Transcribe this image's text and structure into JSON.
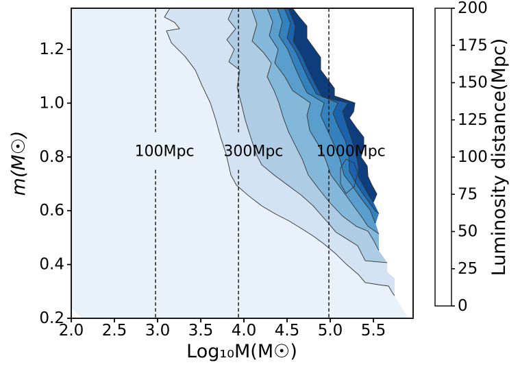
{
  "chart_data": {
    "type": "filled_contour",
    "title": "",
    "labels": {
      "x": "Log₁₀M(M☉)",
      "y": "m(M☉)",
      "colorbar": "Luminosity distance(Mpc)"
    },
    "x_range": [
      2.0,
      5.96
    ],
    "y_range": [
      0.2,
      1.353
    ],
    "x_ticks": {
      "values": [
        2.0,
        2.5,
        3.0,
        3.5,
        4.0,
        4.5,
        5.0,
        5.5
      ],
      "labels": [
        "2.0",
        "2.5",
        "3.0",
        "3.5",
        "4.0",
        "4.5",
        "5.0",
        "5.5"
      ]
    },
    "y_ticks": {
      "values": [
        0.2,
        0.4,
        0.6,
        0.8,
        1.0,
        1.2
      ],
      "labels": [
        "0.2",
        "0.4",
        "0.6",
        "0.8",
        "1.0",
        "1.2"
      ]
    },
    "colorbar": {
      "levels": [
        0,
        25,
        50,
        75,
        100,
        125,
        150,
        175,
        200
      ],
      "tick_labels": [
        "0",
        "25",
        "50",
        "75",
        "100",
        "125",
        "150",
        "175",
        "200"
      ],
      "band_colors": [
        "#e9f1fa",
        "#d3e3f3",
        "#aecde4",
        "#84b8da",
        "#5a9ecd",
        "#3381bd",
        "#1b63ad",
        "#0d3d7c"
      ]
    },
    "line_color": "#333333",
    "reference_line_color": "#1a1a1a",
    "reference_lines": [
      {
        "x": 2.976,
        "label": "100Mpc",
        "label_x": 3.08
      },
      {
        "x": 3.937,
        "label": "300Mpc",
        "label_x": 4.11
      },
      {
        "x": 4.984,
        "label": "1000Mpc",
        "label_x": 5.24
      }
    ],
    "reference_label_y": 0.82,
    "reference_gap_y": [
      0.752,
      0.892
    ],
    "data_boundary": [
      [
        4.563,
        1.353
      ],
      [
        4.643,
        1.32
      ],
      [
        4.73,
        1.287
      ],
      [
        4.73,
        1.241
      ],
      [
        4.81,
        1.205
      ],
      [
        4.889,
        1.17
      ],
      [
        4.889,
        1.124
      ],
      [
        4.968,
        1.09
      ],
      [
        5.048,
        1.055
      ],
      [
        5.048,
        1.027
      ],
      [
        5.286,
        1.001
      ],
      [
        5.27,
        0.968
      ],
      [
        5.222,
        0.945
      ],
      [
        5.302,
        0.909
      ],
      [
        5.389,
        0.873
      ],
      [
        5.389,
        0.833
      ],
      [
        5.357,
        0.8
      ],
      [
        5.429,
        0.766
      ],
      [
        5.437,
        0.728
      ],
      [
        5.484,
        0.695
      ],
      [
        5.54,
        0.662
      ],
      [
        5.5,
        0.631
      ],
      [
        5.563,
        0.59
      ],
      [
        5.524,
        0.552
      ],
      [
        5.563,
        0.514
      ],
      [
        5.563,
        0.452
      ],
      [
        5.659,
        0.407
      ],
      [
        5.659,
        0.373
      ],
      [
        5.746,
        0.348
      ],
      [
        5.746,
        0.284
      ],
      [
        5.905,
        0.2
      ]
    ],
    "boundary_stroke_end_index": 21,
    "lower_left_cutout": [
      [
        2.119,
        0.2
      ],
      [
        2.0,
        0.238
      ]
    ],
    "contour_lines": [
      {
        "level": 25,
        "junction": 29,
        "points": [
          [
            3.143,
            1.353
          ],
          [
            3.079,
            1.32
          ],
          [
            3.198,
            1.3
          ],
          [
            3.254,
            1.277
          ],
          [
            3.103,
            1.269
          ],
          [
            3.159,
            1.225
          ],
          [
            3.317,
            1.174
          ],
          [
            3.437,
            1.123
          ],
          [
            3.516,
            1.065
          ],
          [
            3.611,
            1.001
          ],
          [
            3.675,
            0.937
          ],
          [
            3.73,
            0.873
          ],
          [
            3.794,
            0.81
          ],
          [
            3.849,
            0.733
          ],
          [
            3.913,
            0.695
          ],
          [
            4.048,
            0.657
          ],
          [
            4.206,
            0.618
          ],
          [
            4.365,
            0.588
          ],
          [
            4.524,
            0.562
          ],
          [
            4.69,
            0.529
          ],
          [
            4.81,
            0.504
          ],
          [
            4.921,
            0.478
          ],
          [
            5.063,
            0.44
          ],
          [
            5.183,
            0.402
          ],
          [
            5.325,
            0.363
          ],
          [
            5.405,
            0.333
          ],
          [
            5.556,
            0.325
          ],
          [
            5.675,
            0.32
          ],
          [
            5.722,
            0.294
          ],
          [
            5.746,
            0.284
          ]
        ]
      },
      {
        "level": 50,
        "junction": 26,
        "points": [
          [
            3.873,
            1.353
          ],
          [
            3.817,
            1.312
          ],
          [
            3.905,
            1.277
          ],
          [
            3.802,
            1.236
          ],
          [
            3.889,
            1.2
          ],
          [
            3.825,
            1.154
          ],
          [
            3.952,
            1.123
          ],
          [
            3.921,
            1.057
          ],
          [
            3.968,
            1.001
          ],
          [
            4.016,
            0.937
          ],
          [
            4.079,
            0.873
          ],
          [
            4.143,
            0.81
          ],
          [
            4.206,
            0.771
          ],
          [
            4.349,
            0.733
          ],
          [
            4.508,
            0.695
          ],
          [
            4.667,
            0.657
          ],
          [
            4.802,
            0.618
          ],
          [
            4.905,
            0.58
          ],
          [
            4.984,
            0.552
          ],
          [
            5.063,
            0.521
          ],
          [
            5.317,
            0.47
          ],
          [
            5.405,
            0.414
          ],
          [
            5.659,
            0.407
          ]
        ]
      },
      {
        "level": 75,
        "junction": 25,
        "points": [
          [
            4.087,
            1.353
          ],
          [
            4.151,
            1.294
          ],
          [
            4.095,
            1.231
          ],
          [
            4.23,
            1.187
          ],
          [
            4.317,
            1.149
          ],
          [
            4.27,
            1.098
          ],
          [
            4.349,
            1.047
          ],
          [
            4.405,
            1.001
          ],
          [
            4.452,
            0.95
          ],
          [
            4.516,
            0.894
          ],
          [
            4.595,
            0.843
          ],
          [
            4.675,
            0.792
          ],
          [
            4.746,
            0.733
          ],
          [
            4.865,
            0.682
          ],
          [
            4.992,
            0.631
          ],
          [
            5.143,
            0.58
          ],
          [
            5.302,
            0.542
          ],
          [
            5.437,
            0.524
          ],
          [
            5.5,
            0.491
          ],
          [
            5.563,
            0.452
          ]
        ]
      },
      {
        "level": 100,
        "junction": 24,
        "points": [
          [
            4.27,
            1.353
          ],
          [
            4.333,
            1.302
          ],
          [
            4.294,
            1.251
          ],
          [
            4.397,
            1.2
          ],
          [
            4.357,
            1.149
          ],
          [
            4.476,
            1.098
          ],
          [
            4.563,
            1.047
          ],
          [
            4.77,
            1.001
          ],
          [
            4.73,
            0.955
          ],
          [
            4.762,
            0.899
          ],
          [
            4.857,
            0.848
          ],
          [
            4.944,
            0.792
          ],
          [
            5.008,
            0.733
          ],
          [
            5.095,
            0.695
          ],
          [
            5.183,
            0.657
          ],
          [
            5.27,
            0.618
          ],
          [
            5.357,
            0.58
          ],
          [
            5.437,
            0.542
          ],
          [
            5.563,
            0.514
          ]
        ]
      },
      {
        "level": 125,
        "junction": 23,
        "points": [
          [
            4.389,
            1.353
          ],
          [
            4.444,
            1.302
          ],
          [
            4.405,
            1.251
          ],
          [
            4.508,
            1.2
          ],
          [
            4.571,
            1.149
          ],
          [
            4.651,
            1.09
          ],
          [
            4.73,
            1.039
          ],
          [
            4.929,
            1.001
          ],
          [
            4.889,
            0.955
          ],
          [
            4.968,
            0.899
          ],
          [
            5.048,
            0.843
          ],
          [
            5.111,
            0.792
          ],
          [
            5.159,
            0.733
          ],
          [
            5.238,
            0.7
          ],
          [
            5.317,
            0.664
          ],
          [
            5.397,
            0.629
          ],
          [
            5.46,
            0.603
          ],
          [
            5.524,
            0.552
          ]
        ]
      },
      {
        "level": 150,
        "junction": 22,
        "points": [
          [
            4.468,
            1.353
          ],
          [
            4.54,
            1.297
          ],
          [
            4.5,
            1.243
          ],
          [
            4.603,
            1.19
          ],
          [
            4.675,
            1.139
          ],
          [
            4.754,
            1.085
          ],
          [
            4.841,
            1.034
          ],
          [
            5.087,
            1.001
          ],
          [
            5.032,
            0.963
          ],
          [
            5.095,
            0.912
          ],
          [
            5.175,
            0.861
          ],
          [
            5.214,
            0.807
          ],
          [
            5.222,
            0.746
          ],
          [
            5.286,
            0.708
          ],
          [
            5.365,
            0.669
          ],
          [
            5.444,
            0.634
          ],
          [
            5.52,
            0.6
          ],
          [
            5.563,
            0.59
          ]
        ]
      },
      {
        "level": 175,
        "junction": 21,
        "points": [
          [
            4.516,
            1.353
          ],
          [
            4.595,
            1.287
          ],
          [
            4.571,
            1.231
          ],
          [
            4.675,
            1.174
          ],
          [
            4.746,
            1.123
          ],
          [
            4.825,
            1.072
          ],
          [
            4.905,
            1.024
          ],
          [
            5.206,
            1.001
          ],
          [
            5.143,
            0.97
          ],
          [
            5.19,
            0.919
          ],
          [
            5.246,
            0.868
          ],
          [
            5.294,
            0.817
          ],
          [
            5.325,
            0.766
          ],
          [
            5.325,
            0.726
          ],
          [
            5.389,
            0.69
          ],
          [
            5.452,
            0.654
          ],
          [
            5.5,
            0.631
          ]
        ]
      }
    ],
    "inner_contour": [
      [
        5.119,
        0.759
      ],
      [
        5.183,
        0.792
      ],
      [
        5.278,
        0.777
      ],
      [
        5.317,
        0.741
      ],
      [
        5.278,
        0.69
      ],
      [
        5.183,
        0.664
      ],
      [
        5.119,
        0.7
      ]
    ]
  }
}
